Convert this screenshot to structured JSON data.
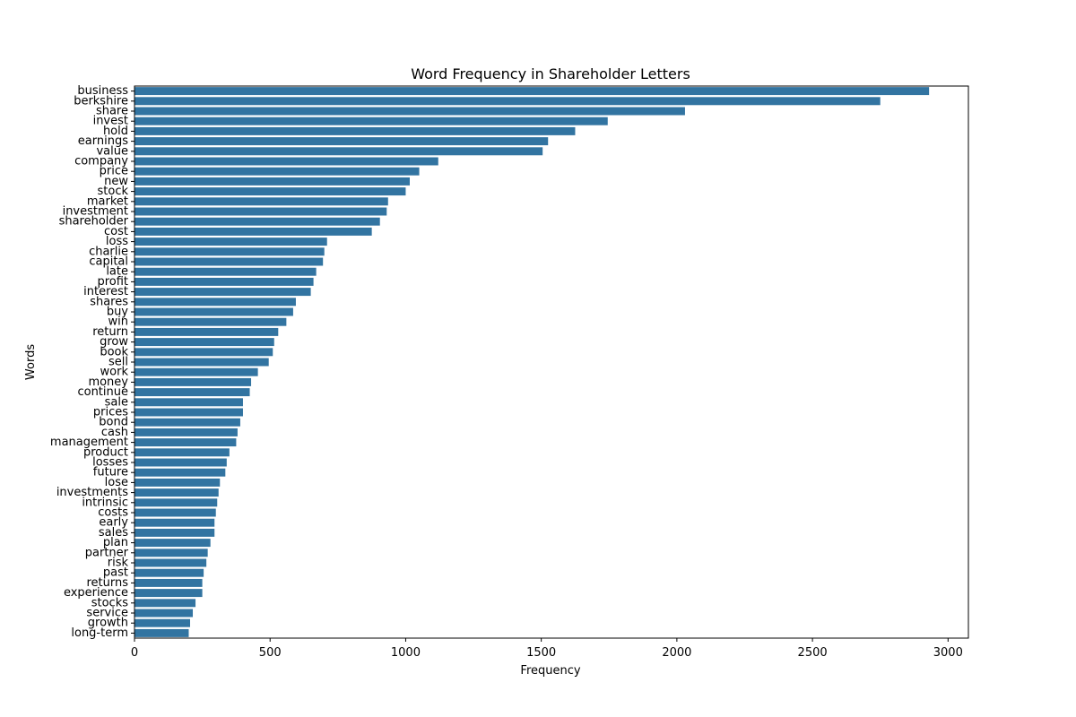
{
  "chart_data": {
    "type": "bar",
    "orientation": "horizontal",
    "title": "Word Frequency in Shareholder Letters",
    "xlabel": "Frequency",
    "ylabel": "Words",
    "xlim": [
      0,
      3075
    ],
    "xticks": [
      0,
      500,
      1000,
      1500,
      2000,
      2500,
      3000
    ],
    "grid": false,
    "bar_color": "#3274a1",
    "categories": [
      "business",
      "berkshire",
      "share",
      "invest",
      "hold",
      "earnings",
      "value",
      "company",
      "price",
      "new",
      "stock",
      "market",
      "investment",
      "shareholder",
      "cost",
      "loss",
      "charlie",
      "capital",
      "late",
      "profit",
      "interest",
      "shares",
      "buy",
      "win",
      "return",
      "grow",
      "book",
      "sell",
      "work",
      "money",
      "continue",
      "sale",
      "prices",
      "bond",
      "cash",
      "management",
      "product",
      "losses",
      "future",
      "lose",
      "investments",
      "intrinsic",
      "costs",
      "early",
      "sales",
      "plan",
      "partner",
      "risk",
      "past",
      "returns",
      "experience",
      "stocks",
      "service",
      "growth",
      "long-term"
    ],
    "values": [
      2930,
      2750,
      2030,
      1745,
      1625,
      1525,
      1505,
      1120,
      1050,
      1015,
      1000,
      935,
      930,
      905,
      875,
      710,
      700,
      695,
      670,
      660,
      650,
      595,
      585,
      560,
      530,
      515,
      510,
      495,
      455,
      430,
      425,
      400,
      400,
      390,
      380,
      375,
      350,
      340,
      335,
      315,
      310,
      305,
      300,
      295,
      295,
      280,
      270,
      265,
      255,
      250,
      250,
      225,
      215,
      205,
      200
    ]
  }
}
